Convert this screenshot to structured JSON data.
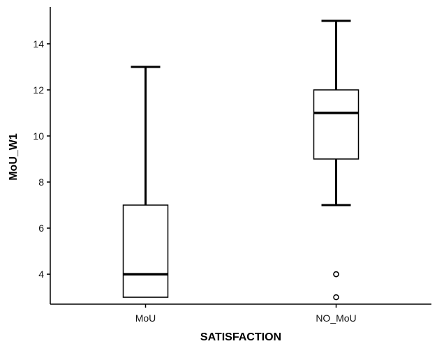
{
  "chart_data": {
    "type": "boxplot",
    "title": "",
    "xlabel": "SATISFACTION",
    "ylabel": "MoU_W1",
    "ylim": [
      2.7,
      15.6
    ],
    "yticks": [
      4,
      6,
      8,
      10,
      12,
      14
    ],
    "grid": false,
    "categories": [
      "MoU",
      "NO_MoU"
    ],
    "boxes": [
      {
        "category": "MoU",
        "whisker_low": 3,
        "q1": 3,
        "median": 4,
        "q3": 7,
        "whisker_high": 13,
        "outliers": []
      },
      {
        "category": "NO_MoU",
        "whisker_low": 7,
        "q1": 9,
        "median": 11,
        "q3": 12,
        "whisker_high": 15,
        "outliers": [
          4,
          4,
          3
        ]
      }
    ]
  }
}
